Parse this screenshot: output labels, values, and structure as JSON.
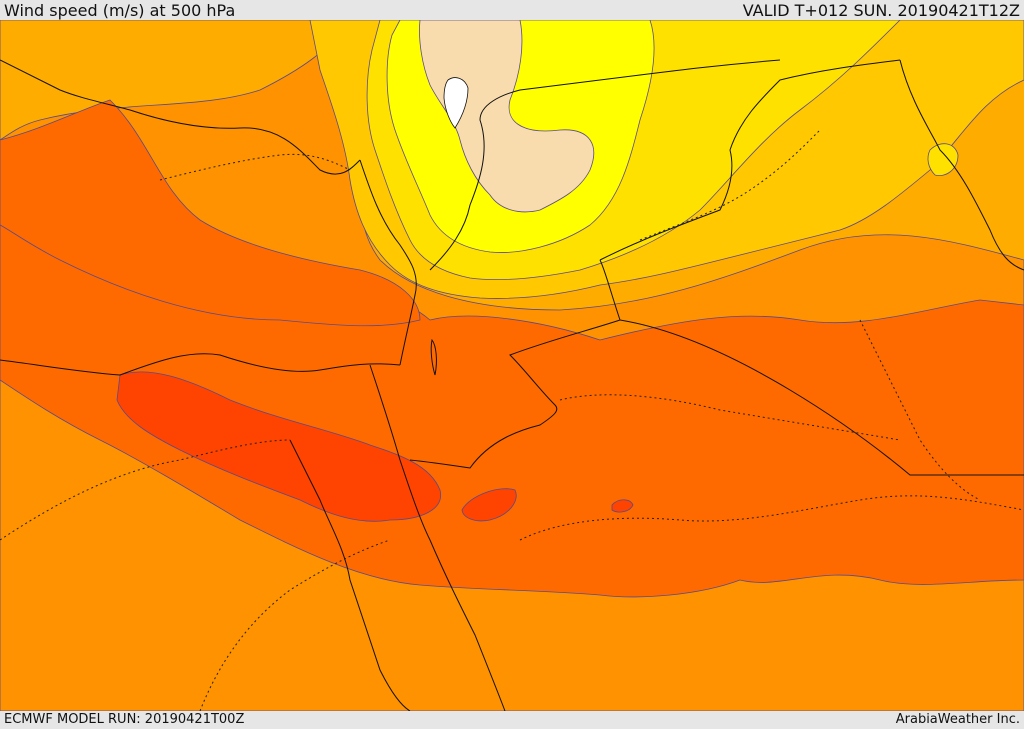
{
  "header": {
    "title": "Wind speed (m/s) at 500 hPa",
    "valid": "VALID T+012 SUN. 20190421T12Z"
  },
  "footer": {
    "model_run": "ECMWF MODEL RUN: 20190421T00Z",
    "credit": "ArabiaWeather Inc."
  },
  "map": {
    "variable": "wind speed",
    "level": "500 hPa",
    "palette": {
      "peach": "#f8dcae",
      "yellow": "#ffff00",
      "light_yellow": "#ffe100",
      "gold": "#ffc800",
      "amber": "#ffac00",
      "orange": "#ff9200",
      "dark_orange": "#ff6a00",
      "red_orange": "#ff4300",
      "contour": "#5a4a8a",
      "border": "#111111"
    }
  }
}
